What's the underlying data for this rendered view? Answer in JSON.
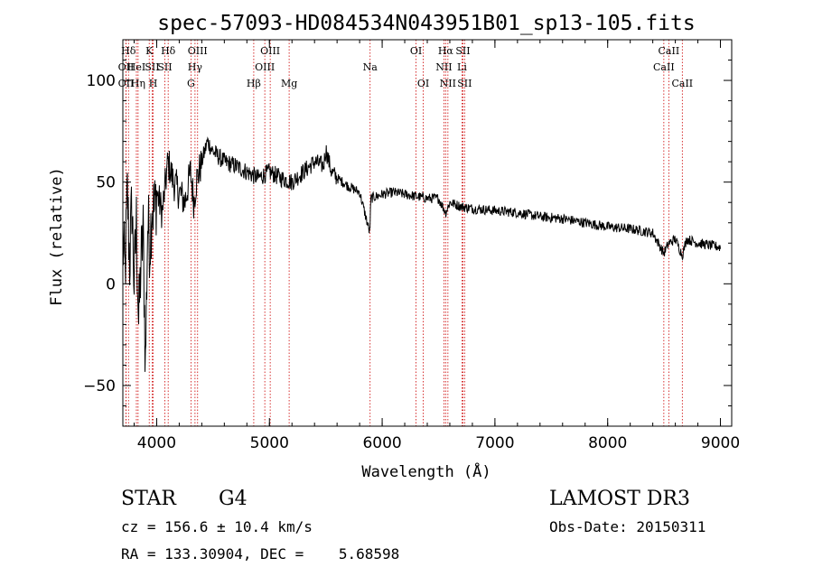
{
  "chart_data": {
    "type": "line",
    "title": "spec-57093-HD084534N043951B01_sp13-105.fits",
    "xlabel": "Wavelength (Å)",
    "ylabel": "Flux (relative)",
    "xlim": [
      3700,
      9100
    ],
    "ylim": [
      -70,
      120
    ],
    "xticks": [
      4000,
      5000,
      6000,
      7000,
      8000,
      9000
    ],
    "yticks": [
      -50,
      0,
      50,
      100
    ],
    "spectrum_anchors": {
      "x": [
        3700,
        3720,
        3740,
        3760,
        3780,
        3800,
        3820,
        3840,
        3860,
        3880,
        3900,
        3920,
        3940,
        3960,
        3980,
        4000,
        4050,
        4100,
        4150,
        4200,
        4250,
        4300,
        4330,
        4350,
        4400,
        4450,
        4500,
        4600,
        4700,
        4800,
        4900,
        5000,
        5100,
        5200,
        5300,
        5400,
        5480,
        5500,
        5550,
        5600,
        5700,
        5800,
        5890,
        5900,
        6000,
        6100,
        6200,
        6300,
        6400,
        6500,
        6563,
        6600,
        6700,
        6800,
        7000,
        7200,
        7400,
        7600,
        7800,
        8000,
        8200,
        8400,
        8498,
        8542,
        8600,
        8662,
        8700,
        8800,
        8900,
        9000
      ],
      "y": [
        20,
        5,
        45,
        10,
        40,
        0,
        30,
        -20,
        10,
        25,
        -40,
        30,
        20,
        40,
        35,
        45,
        35,
        60,
        50,
        45,
        40,
        55,
        40,
        50,
        60,
        70,
        65,
        60,
        58,
        55,
        52,
        55,
        52,
        50,
        55,
        60,
        58,
        66,
        55,
        52,
        48,
        45,
        25,
        42,
        44,
        45,
        44,
        43,
        42,
        42,
        35,
        40,
        38,
        37,
        36,
        35,
        33,
        32,
        30,
        28,
        27,
        25,
        15,
        20,
        22,
        14,
        22,
        20,
        19,
        18
      ]
    },
    "lines": [
      {
        "label": "Hδ",
        "x": 3750,
        "row": 0
      },
      {
        "label": "OII",
        "x": 3728,
        "row": 1
      },
      {
        "label": "OII",
        "x": 3728,
        "row": 2
      },
      {
        "label": "HeI",
        "x": 3820,
        "row": 1
      },
      {
        "label": "Hη",
        "x": 3835,
        "row": 2
      },
      {
        "label": "K",
        "x": 3934,
        "row": 0
      },
      {
        "label": "SII",
        "x": 3960,
        "row": 1
      },
      {
        "label": "H",
        "x": 3969,
        "row": 2
      },
      {
        "label": "Hδ",
        "x": 4102,
        "row": 0
      },
      {
        "label": "SII",
        "x": 4072,
        "row": 1
      },
      {
        "label": "OIII",
        "x": 4363,
        "row": 0
      },
      {
        "label": "Hγ",
        "x": 4340,
        "row": 1
      },
      {
        "label": "G",
        "x": 4304,
        "row": 2
      },
      {
        "label": "OIII",
        "x": 5007,
        "row": 0
      },
      {
        "label": "OIII",
        "x": 4959,
        "row": 1
      },
      {
        "label": "Hβ",
        "x": 4861,
        "row": 2
      },
      {
        "label": "Mg",
        "x": 5175,
        "row": 2
      },
      {
        "label": "Na",
        "x": 5893,
        "row": 1
      },
      {
        "label": "OI",
        "x": 6300,
        "row": 0
      },
      {
        "label": "OI",
        "x": 6364,
        "row": 2
      },
      {
        "label": "Hα",
        "x": 6563,
        "row": 0
      },
      {
        "label": "NII",
        "x": 6548,
        "row": 1
      },
      {
        "label": "NII",
        "x": 6583,
        "row": 2
      },
      {
        "label": "SII",
        "x": 6716,
        "row": 0
      },
      {
        "label": "Li",
        "x": 6708,
        "row": 1
      },
      {
        "label": "SII",
        "x": 6731,
        "row": 2
      },
      {
        "label": "CaII",
        "x": 8542,
        "row": 0
      },
      {
        "label": "CaII",
        "x": 8498,
        "row": 1
      },
      {
        "label": "CaII",
        "x": 8662,
        "row": 2
      }
    ]
  },
  "info": {
    "object_class": "STAR",
    "subclass": "G4",
    "survey": "LAMOST DR3",
    "cz": "cz = 156.6 ± 10.4 km/s",
    "obs_date": "Obs-Date: 20150311",
    "coords": "RA = 133.30904, DEC =    5.68598"
  },
  "colors": {
    "spectrum": "#000000",
    "line_markers": "#cc0000",
    "axes": "#000000"
  }
}
